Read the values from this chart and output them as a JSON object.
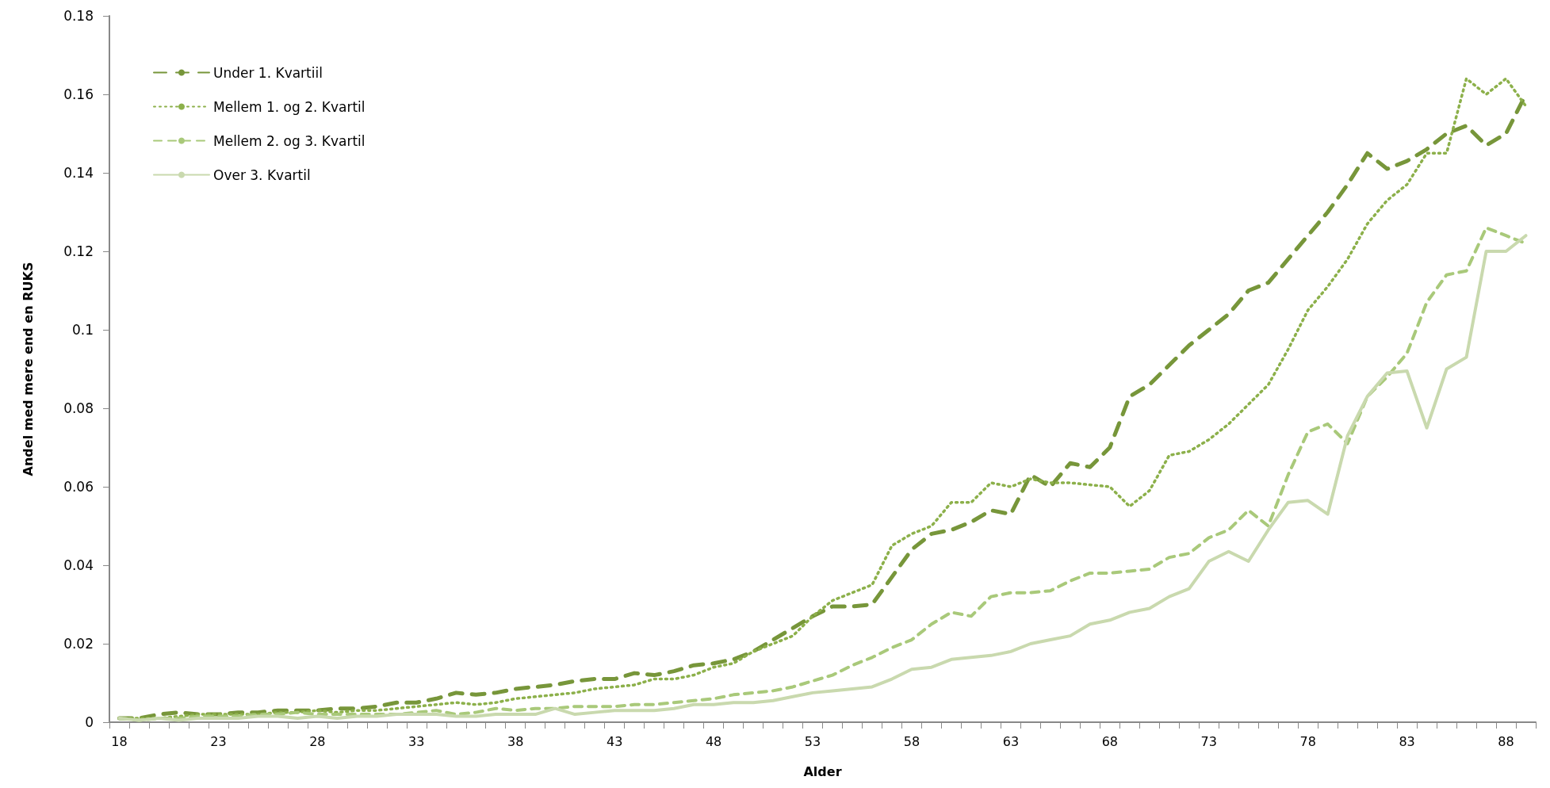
{
  "chart_data": {
    "type": "line",
    "xlabel": "Alder",
    "ylabel": "Andel med mere end en RUKS",
    "categories": [
      "18",
      null,
      null,
      null,
      null,
      "23",
      null,
      null,
      null,
      null,
      "28",
      null,
      null,
      null,
      null,
      "33",
      null,
      null,
      null,
      null,
      "38",
      null,
      null,
      null,
      null,
      "43",
      null,
      null,
      null,
      null,
      "48",
      null,
      null,
      null,
      null,
      "53",
      null,
      null,
      null,
      null,
      "58",
      null,
      null,
      null,
      null,
      "63",
      null,
      null,
      null,
      null,
      "68",
      null,
      null,
      null,
      null,
      "73",
      null,
      null,
      null,
      null,
      "78",
      null,
      null,
      null,
      null,
      "83",
      null,
      null,
      null,
      null,
      "88",
      null
    ],
    "series": [
      {
        "name": "Under 1. Kvartiil",
        "color": "#77963a",
        "line_style": "dashed",
        "values": [
          0.001,
          0.001,
          0.002,
          0.0025,
          0.002,
          0.002,
          0.0025,
          0.0025,
          0.003,
          0.003,
          0.003,
          0.0035,
          0.0035,
          0.004,
          0.005,
          0.005,
          0.006,
          0.0075,
          0.007,
          0.0075,
          0.0085,
          0.009,
          0.0095,
          0.0105,
          0.011,
          0.011,
          0.0125,
          0.012,
          0.013,
          0.0145,
          0.015,
          0.016,
          0.018,
          0.021,
          0.024,
          0.027,
          0.0295,
          0.0295,
          0.03,
          0.037,
          0.044,
          0.048,
          0.049,
          0.051,
          0.054,
          0.053,
          0.063,
          0.06,
          0.066,
          0.065,
          0.07,
          0.083,
          0.086,
          0.091,
          0.096,
          0.1,
          0.104,
          0.11,
          0.112,
          0.118,
          0.124,
          0.13,
          0.137,
          0.145,
          0.141,
          0.143,
          0.146,
          0.15,
          0.152,
          0.147,
          0.15,
          0.16
        ]
      },
      {
        "name": "Mellem 1. og 2. Kvartil",
        "color": "#8cb04a",
        "line_style": "dotted",
        "values": [
          0.001,
          0.001,
          0.001,
          0.0015,
          0.002,
          0.002,
          0.002,
          0.002,
          0.0025,
          0.0025,
          0.003,
          0.0025,
          0.003,
          0.003,
          0.0035,
          0.004,
          0.0045,
          0.005,
          0.0045,
          0.005,
          0.006,
          0.0065,
          0.007,
          0.0075,
          0.0085,
          0.009,
          0.0095,
          0.011,
          0.011,
          0.012,
          0.014,
          0.015,
          0.018,
          0.02,
          0.022,
          0.027,
          0.031,
          0.033,
          0.035,
          0.045,
          0.048,
          0.05,
          0.056,
          0.056,
          0.061,
          0.06,
          0.062,
          0.061,
          0.061,
          0.0605,
          0.06,
          0.055,
          0.059,
          0.068,
          0.069,
          0.072,
          0.076,
          0.081,
          0.086,
          0.095,
          0.105,
          0.111,
          0.118,
          0.127,
          0.133,
          0.137,
          0.145,
          0.145,
          0.164,
          0.16,
          0.164,
          0.157
        ]
      },
      {
        "name": "Mellem 2. og 3. Kvartil",
        "color": "#a9c97a",
        "line_style": "dashed",
        "values": [
          0.001,
          0.0005,
          0.001,
          0.001,
          0.0015,
          0.0015,
          0.0015,
          0.002,
          0.002,
          0.0025,
          0.002,
          0.002,
          0.002,
          0.002,
          0.002,
          0.0025,
          0.003,
          0.002,
          0.0025,
          0.0035,
          0.003,
          0.0035,
          0.0035,
          0.004,
          0.004,
          0.004,
          0.0045,
          0.0045,
          0.005,
          0.0055,
          0.006,
          0.007,
          0.0075,
          0.008,
          0.009,
          0.0105,
          0.012,
          0.0145,
          0.0165,
          0.019,
          0.021,
          0.025,
          0.028,
          0.027,
          0.032,
          0.033,
          0.033,
          0.0335,
          0.036,
          0.038,
          0.038,
          0.0385,
          0.039,
          0.042,
          0.043,
          0.047,
          0.049,
          0.054,
          0.05,
          0.063,
          0.074,
          0.076,
          0.071,
          0.083,
          0.088,
          0.094,
          0.107,
          0.114,
          0.115,
          0.126,
          0.124,
          0.122
        ]
      },
      {
        "name": "Over 3. Kvartil",
        "color": "#c9d9ae",
        "line_style": "solid",
        "values": [
          0.001,
          0.0005,
          0.001,
          0.0005,
          0.001,
          0.001,
          0.001,
          0.0015,
          0.0015,
          0.001,
          0.0015,
          0.001,
          0.0015,
          0.0015,
          0.002,
          0.002,
          0.002,
          0.0015,
          0.0015,
          0.002,
          0.002,
          0.002,
          0.0035,
          0.002,
          0.0025,
          0.003,
          0.003,
          0.003,
          0.0035,
          0.0045,
          0.0045,
          0.005,
          0.005,
          0.0055,
          0.0065,
          0.0075,
          0.008,
          0.0085,
          0.009,
          0.011,
          0.0135,
          0.014,
          0.016,
          0.0165,
          0.017,
          0.018,
          0.02,
          0.021,
          0.022,
          0.025,
          0.026,
          0.028,
          0.029,
          0.032,
          0.034,
          0.041,
          0.0435,
          0.041,
          0.049,
          0.056,
          0.0565,
          0.053,
          0.073,
          0.083,
          0.089,
          0.0895,
          0.075,
          0.09,
          0.093,
          0.12,
          0.12,
          0.124
        ]
      }
    ],
    "ylim": [
      0,
      0.18
    ],
    "yticks": [
      0,
      0.02,
      0.04,
      0.06,
      0.08,
      0.1,
      0.12,
      0.14,
      0.16,
      0.18
    ],
    "grid": false,
    "legend": "top left",
    "marker": "none"
  }
}
